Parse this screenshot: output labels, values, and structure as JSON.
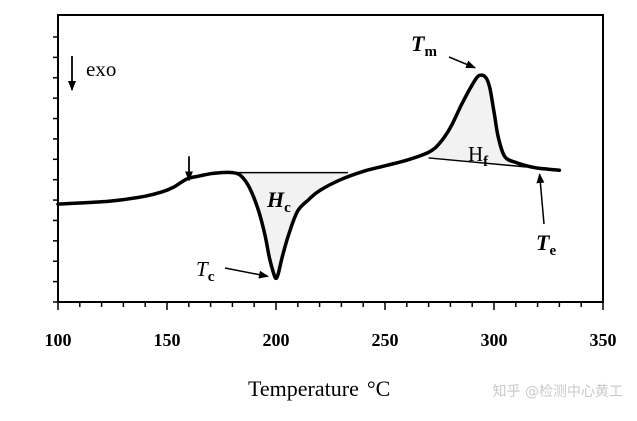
{
  "chart_data": {
    "type": "line",
    "title": "",
    "xlabel": "Temperature",
    "xlabel_unit": "°C",
    "ylabel": "",
    "xlim": [
      100,
      350
    ],
    "x_ticks": [
      100,
      150,
      200,
      250,
      300,
      350
    ],
    "y_ticks_count": 14,
    "grid": false,
    "legend": "none",
    "exo_label": "exo",
    "series": [
      {
        "x": [
          100,
          110,
          120,
          130,
          140,
          148,
          153,
          157,
          160,
          165,
          170,
          175,
          180,
          184,
          188,
          192,
          195,
          197,
          199,
          200,
          201,
          203,
          206,
          210,
          215,
          220,
          230,
          240,
          250,
          260,
          270,
          275,
          280,
          285,
          290,
          293,
          296,
          298,
          300,
          302,
          305,
          310,
          315,
          320,
          325,
          330
        ],
        "y": [
          0.06,
          0.07,
          0.08,
          0.1,
          0.13,
          0.17,
          0.21,
          0.26,
          0.29,
          0.31,
          0.33,
          0.34,
          0.34,
          0.31,
          0.2,
          0.0,
          -0.22,
          -0.42,
          -0.56,
          -0.6,
          -0.56,
          -0.4,
          -0.2,
          0.0,
          0.1,
          0.18,
          0.28,
          0.35,
          0.4,
          0.45,
          0.52,
          0.6,
          0.74,
          0.94,
          1.12,
          1.2,
          1.19,
          1.1,
          0.88,
          0.65,
          0.48,
          0.43,
          0.4,
          0.38,
          0.37,
          0.36
        ]
      }
    ],
    "baselines": [
      {
        "x": [
          180,
          233
        ],
        "y": [
          0.34,
          0.34
        ]
      },
      {
        "x": [
          270,
          315
        ],
        "y": [
          0.47,
          0.39
        ]
      }
    ],
    "annotations": {
      "Tm": {
        "main": "T",
        "sub": "m",
        "x": 295,
        "y": 1.2
      },
      "Hf": {
        "main": "H",
        "sub": "f"
      },
      "Hc": {
        "main": "H",
        "sub": "c"
      },
      "Tc": {
        "main": "T",
        "sub": "c",
        "x": 200,
        "y": -0.6
      },
      "Te": {
        "main": "T",
        "sub": "e",
        "x": 320,
        "y": 0.38
      },
      "Tg_arrow_x": 150
    },
    "ylim_internal": [
      -0.81,
      1.74
    ]
  },
  "watermark": "知乎 @检测中心黄工"
}
